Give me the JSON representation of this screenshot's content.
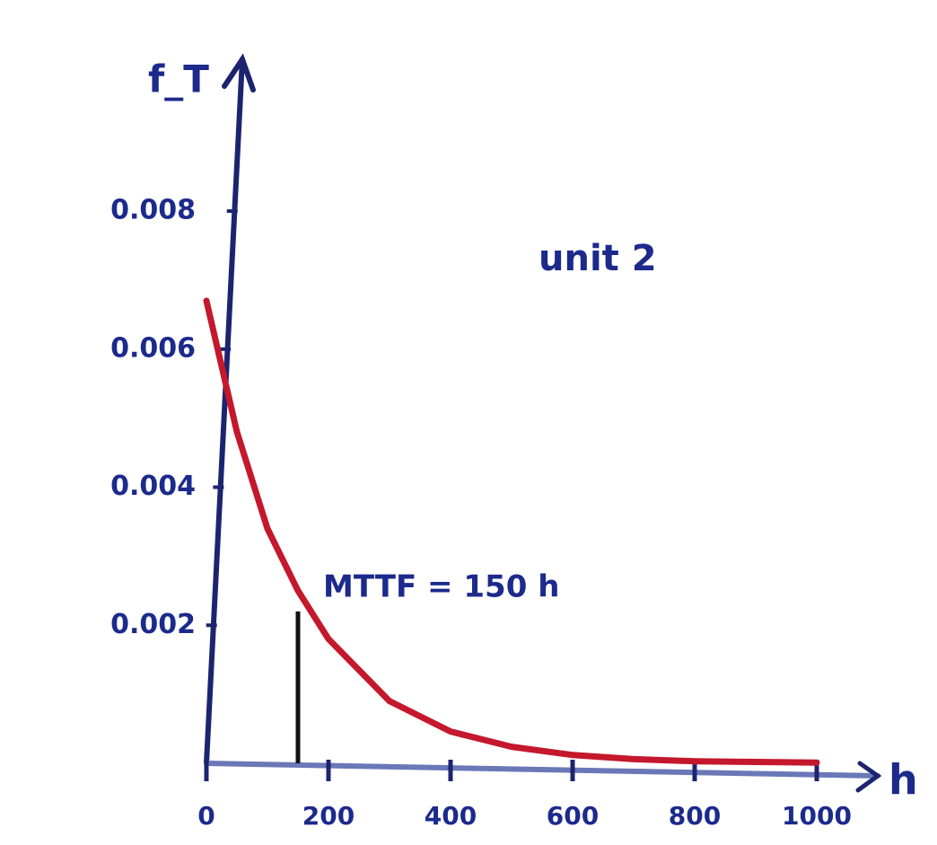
{
  "chart_data": {
    "type": "line",
    "ylabel": "f_T",
    "xlabel": "h",
    "annotations": [
      "unit 2",
      "MTTF = 150 h"
    ],
    "vline_x": 150,
    "x": [
      0,
      50,
      100,
      150,
      200,
      300,
      400,
      500,
      600,
      700,
      800,
      900,
      1000
    ],
    "values": [
      0.0067,
      0.0048,
      0.0034,
      0.0025,
      0.0018,
      0.0009,
      0.00046,
      0.00024,
      0.00012,
      6e-05,
      3e-05,
      2e-05,
      1e-05
    ],
    "color": "#c4182c",
    "xlim": [
      0,
      1100
    ],
    "ylim": [
      0,
      0.0102
    ],
    "xticks": [
      0,
      200,
      400,
      600,
      800,
      1000
    ],
    "yticks": [
      0.002,
      0.004,
      0.006,
      0.008
    ],
    "grid": false
  }
}
